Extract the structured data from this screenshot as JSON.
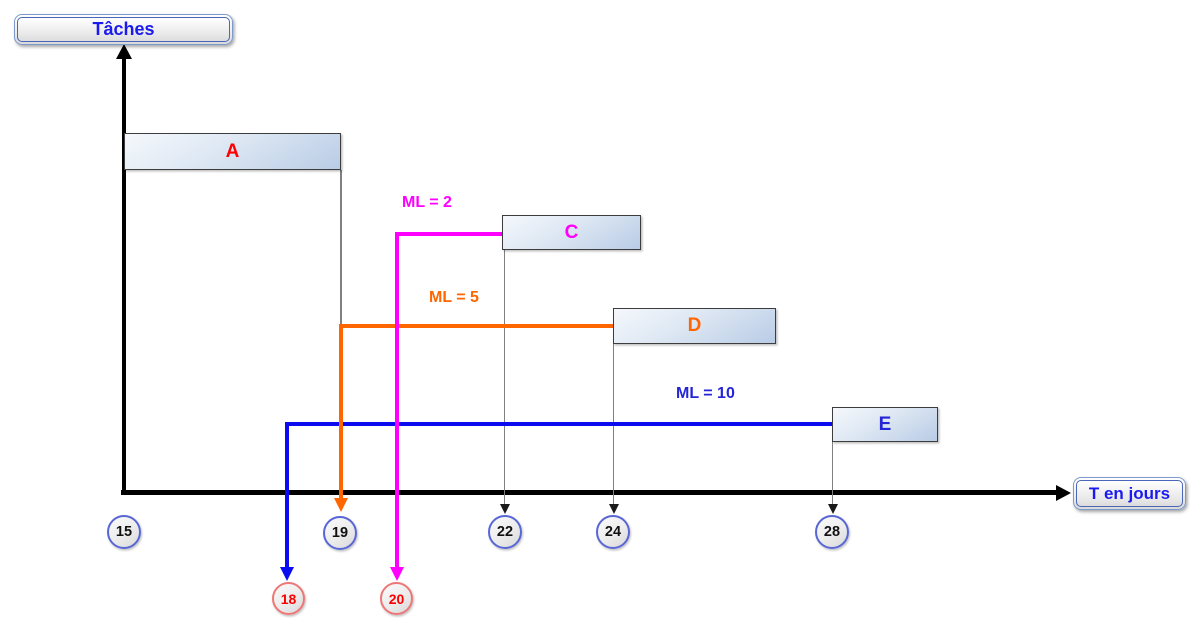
{
  "figure": {
    "y_axis_title": "Tâches",
    "x_axis_title": "T en jours"
  },
  "tasks": [
    {
      "label": "A",
      "color": "#ff0000",
      "start_day": 15,
      "end_day": 19
    },
    {
      "label": "C",
      "color": "#ff00ff",
      "start_day": 22,
      "end_day": 24.5,
      "ml_label": "ML = 2",
      "free_float": 2,
      "float_back_to_day": 20
    },
    {
      "label": "D",
      "color": "#ff6600",
      "start_day": 24,
      "end_day": 27,
      "ml_label": "ML = 5",
      "free_float": 5,
      "float_back_to_day": 19
    },
    {
      "label": "E",
      "color": "#2525d6",
      "start_day": 28,
      "end_day": 30,
      "ml_label": "ML = 10",
      "free_float": 10,
      "float_back_to_day": 18
    }
  ],
  "day_ticks": [
    "15",
    "19",
    "22",
    "24",
    "28"
  ],
  "float_day_ticks": [
    "18",
    "20"
  ],
  "colors": {
    "axis": "#000000",
    "blue_connector": "#0b0bf0",
    "magenta_connector": "#ff00ff",
    "orange_connector": "#ff6600",
    "drop_line_grey": "#808080",
    "bar_fill_light": "#f5f8fc",
    "bar_fill_dark": "#b9cce6",
    "circle_border_blue": "#5866d6",
    "circle_border_red": "#ef7676",
    "axis_box_text_blue": "#1b1bef"
  },
  "chart_data": {
    "type": "bar",
    "variant": "gantt",
    "title": "",
    "xlabel": "T en jours",
    "ylabel": "Tâches",
    "xlim": [
      15,
      32
    ],
    "grid": false,
    "x_ticks_shown": [
      15,
      19,
      22,
      24,
      28
    ],
    "derived_float_ticks_shown": [
      18,
      20
    ],
    "series": [
      {
        "name": "A",
        "start": 15,
        "end": 19
      },
      {
        "name": "C",
        "start": 22,
        "end": 24.5,
        "free_float_ML": 2,
        "float_arrow_to": 20
      },
      {
        "name": "D",
        "start": 24,
        "end": 27,
        "free_float_ML": 5,
        "float_arrow_to": 19
      },
      {
        "name": "E",
        "start": 28,
        "end": 30,
        "free_float_ML": 10,
        "float_arrow_to": 18
      }
    ],
    "annotations": [
      "ML = 2",
      "ML = 5",
      "ML = 10"
    ]
  }
}
